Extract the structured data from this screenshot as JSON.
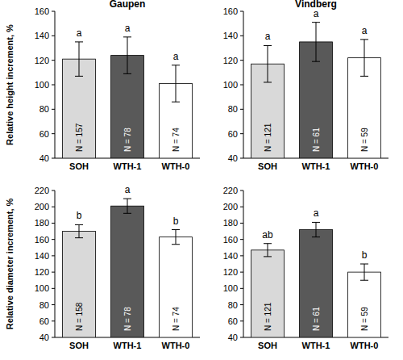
{
  "chart_data": [
    {
      "type": "bar",
      "title": "Gaupen",
      "y_label": "Relative height increment, %",
      "categories": [
        "SOH",
        "WTH-1",
        "WTH-0"
      ],
      "values": [
        121,
        124,
        101
      ],
      "errors": [
        14,
        15,
        15
      ],
      "letters": [
        "a",
        "a",
        "a"
      ],
      "n_labels": [
        "N = 157",
        "N = 78",
        "N = 74"
      ],
      "colors": [
        "#d9d9d9",
        "#595959",
        "#ffffff"
      ],
      "ylim": [
        40,
        160
      ],
      "yticks": [
        40,
        60,
        80,
        100,
        120,
        140,
        160
      ],
      "grid": false
    },
    {
      "type": "bar",
      "title": "Vindberg",
      "categories": [
        "SOH",
        "WTH-1",
        "WTH-0"
      ],
      "values": [
        117,
        135,
        122
      ],
      "errors": [
        15,
        16,
        15
      ],
      "letters": [
        "a",
        "a",
        "a"
      ],
      "n_labels": [
        "N = 121",
        "N = 61",
        "N = 59"
      ],
      "colors": [
        "#d9d9d9",
        "#595959",
        "#ffffff"
      ],
      "ylim": [
        40,
        160
      ],
      "yticks": [
        40,
        60,
        80,
        100,
        120,
        140,
        160
      ],
      "grid": false
    },
    {
      "type": "bar",
      "y_label": "Relative diameter increment, %",
      "categories": [
        "SOH",
        "WTH-1",
        "WTH-0"
      ],
      "values": [
        170,
        201,
        163
      ],
      "errors": [
        8,
        9,
        9
      ],
      "letters": [
        "b",
        "a",
        "b"
      ],
      "n_labels": [
        "N = 158",
        "N = 78",
        "N = 74"
      ],
      "colors": [
        "#d9d9d9",
        "#595959",
        "#ffffff"
      ],
      "ylim": [
        40,
        220
      ],
      "yticks": [
        40,
        60,
        80,
        100,
        120,
        140,
        160,
        180,
        200,
        220
      ],
      "grid": false
    },
    {
      "type": "bar",
      "categories": [
        "SOH",
        "WTH-1",
        "WTH-0"
      ],
      "values": [
        147,
        172,
        120
      ],
      "errors": [
        8,
        9,
        10
      ],
      "letters": [
        "ab",
        "a",
        "b"
      ],
      "n_labels": [
        "N = 121",
        "N = 61",
        "N = 59"
      ],
      "colors": [
        "#d9d9d9",
        "#595959",
        "#ffffff"
      ],
      "ylim": [
        40,
        220
      ],
      "yticks": [
        40,
        60,
        80,
        100,
        120,
        140,
        160,
        180,
        200,
        220
      ],
      "grid": false
    }
  ]
}
